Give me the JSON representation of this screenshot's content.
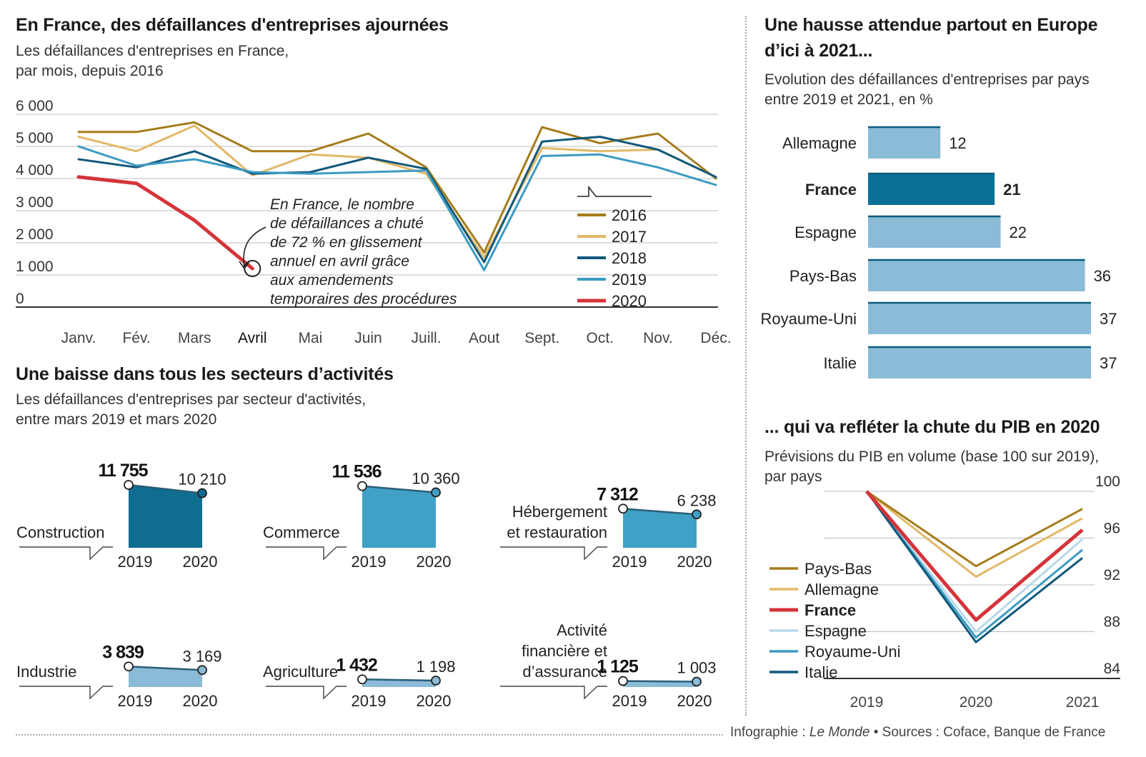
{
  "chart1": {
    "title": "En France, des défaillances d'entreprises ajournées",
    "subtitle": [
      "Les défaillances d'entreprises en France,",
      "par mois, depuis 2016"
    ],
    "annotation": [
      "En France, le nombre",
      "de défaillances a chuté",
      "de 72 % en glissement",
      "annuel en avril grâce",
      "aux amendements",
      "temporaires des procédures"
    ]
  },
  "chart2": {
    "title": [
      "Une hausse attendue partout en Europe",
      "d’ici à 2021..."
    ],
    "subtitle": [
      "Evolution des défaillances d'entreprises par pays",
      "entre 2019 et 2021, en %"
    ]
  },
  "chart3": {
    "title": "Une baisse dans tous les secteurs d’activités",
    "subtitle": [
      "Les défaillances d'entreprises par secteur d'activités,",
      "entre mars 2019 et mars 2020"
    ]
  },
  "chart4": {
    "title": "... qui va refléter la chute du PIB en 2020",
    "subtitle": [
      "Prévisions du PIB en volume (base 100 sur 2019),",
      "par pays"
    ]
  },
  "credits": {
    "prefix": "Infographie : ",
    "outlet": "Le Monde",
    "sources": " • Sources : Coface, Banque de France"
  },
  "colors": {
    "c2016": "#a57c1b",
    "c2017": "#e3b868",
    "c2018": "#11587a",
    "c2019": "#3c9bc3",
    "c2020": "#d4343a",
    "bar_light": "#8bbbd6",
    "bar_dark": "#0a7097",
    "sector_dark": "#0f6d90",
    "sector_mid": "#40a0c6",
    "sector_light": "#8bbbd6",
    "espagne": "#b9d8ea"
  },
  "chart_data": [
    {
      "type": "line",
      "x": [
        "Janv.",
        "Fév.",
        "Mars",
        "Avril",
        "Mai",
        "Juin",
        "Juill.",
        "Aout",
        "Sept.",
        "Oct.",
        "Nov.",
        "Déc."
      ],
      "ylim": [
        0,
        6000
      ],
      "yticks": [
        "0",
        "1 000",
        "2 000",
        "3 000",
        "4 000",
        "5 000",
        "6 000"
      ],
      "yticks_values": [
        0,
        1000,
        2000,
        3000,
        4000,
        5000,
        6000
      ],
      "grid": true,
      "legend_position": "inside-right",
      "series": [
        {
          "name": "2016",
          "color": "#a57c1b",
          "values": [
            5450,
            5450,
            5750,
            4850,
            4850,
            5400,
            4350,
            1700,
            5600,
            5100,
            5400,
            4000
          ]
        },
        {
          "name": "2017",
          "color": "#e3b868",
          "values": [
            5300,
            4850,
            5650,
            4100,
            4750,
            4650,
            4150,
            1550,
            4950,
            4850,
            4900,
            4050
          ]
        },
        {
          "name": "2018",
          "color": "#11587a",
          "values": [
            4600,
            4350,
            4850,
            4150,
            4200,
            4650,
            4300,
            1400,
            5150,
            5300,
            4900,
            4050
          ]
        },
        {
          "name": "2019",
          "color": "#3c9bc3",
          "values": [
            5000,
            4400,
            4600,
            4200,
            4150,
            4200,
            4250,
            1150,
            4700,
            4750,
            4350,
            3800
          ]
        },
        {
          "name": "2020",
          "color": "#d4343a",
          "values": [
            4050,
            3850,
            2700,
            1200,
            null,
            null,
            null,
            null,
            null,
            null,
            null,
            null
          ]
        }
      ]
    },
    {
      "type": "bar",
      "orientation": "horizontal",
      "categories": [
        "Allemagne",
        "France",
        "Espagne",
        "Pays-Bas",
        "Royaume-Uni",
        "Italie"
      ],
      "values": [
        12,
        21,
        22,
        36,
        37,
        37
      ],
      "highlight": "France"
    },
    {
      "type": "area",
      "x": [
        "2019",
        "2020"
      ],
      "panels": [
        {
          "label": [
            "Construction"
          ],
          "values": [
            11755,
            10210
          ],
          "labels": [
            "11 755",
            "10 210"
          ],
          "color": "#0f6d90"
        },
        {
          "label": [
            "Commerce"
          ],
          "values": [
            11536,
            10360
          ],
          "labels": [
            "11 536",
            "10 360"
          ],
          "color": "#40a0c6"
        },
        {
          "label": [
            "Hébergement",
            "et restauration"
          ],
          "values": [
            7312,
            6238
          ],
          "labels": [
            "7 312",
            "6 238"
          ],
          "color": "#40a0c6"
        },
        {
          "label": [
            "Industrie"
          ],
          "values": [
            3839,
            3169
          ],
          "labels": [
            "3 839",
            "3 169"
          ],
          "color": "#8bbbd6"
        },
        {
          "label": [
            "Agriculture"
          ],
          "values": [
            1432,
            1198
          ],
          "labels": [
            "1 432",
            "1 198"
          ],
          "color": "#8bbbd6"
        },
        {
          "label": [
            "Activité",
            "financière et",
            "d’assurance"
          ],
          "values": [
            1125,
            1003
          ],
          "labels": [
            "1 125",
            "1 003"
          ],
          "color": "#8bbbd6"
        }
      ]
    },
    {
      "type": "line",
      "x": [
        "2019",
        "2020",
        "2021"
      ],
      "ylim": [
        84,
        100
      ],
      "yticks": [
        "84",
        "88",
        "92",
        "96",
        "100"
      ],
      "yticks_values": [
        84,
        88,
        92,
        96,
        100
      ],
      "grid": true,
      "legend_position": "left",
      "series": [
        {
          "name": "Pays-Bas",
          "color": "#a57c1b",
          "values": [
            100,
            93.6,
            98.5
          ]
        },
        {
          "name": "Allemagne",
          "color": "#e3b868",
          "values": [
            100,
            92.7,
            97.7
          ]
        },
        {
          "name": "France",
          "color": "#d4343a",
          "values": [
            100,
            89.0,
            96.7
          ]
        },
        {
          "name": "Espagne",
          "color": "#b9d8ea",
          "values": [
            100,
            88.0,
            95.9
          ]
        },
        {
          "name": "Royaume-Uni",
          "color": "#3c9bc3",
          "values": [
            100,
            87.5,
            95.0
          ]
        },
        {
          "name": "Italie",
          "color": "#11587a",
          "values": [
            100,
            87.1,
            94.3
          ]
        }
      ]
    }
  ]
}
